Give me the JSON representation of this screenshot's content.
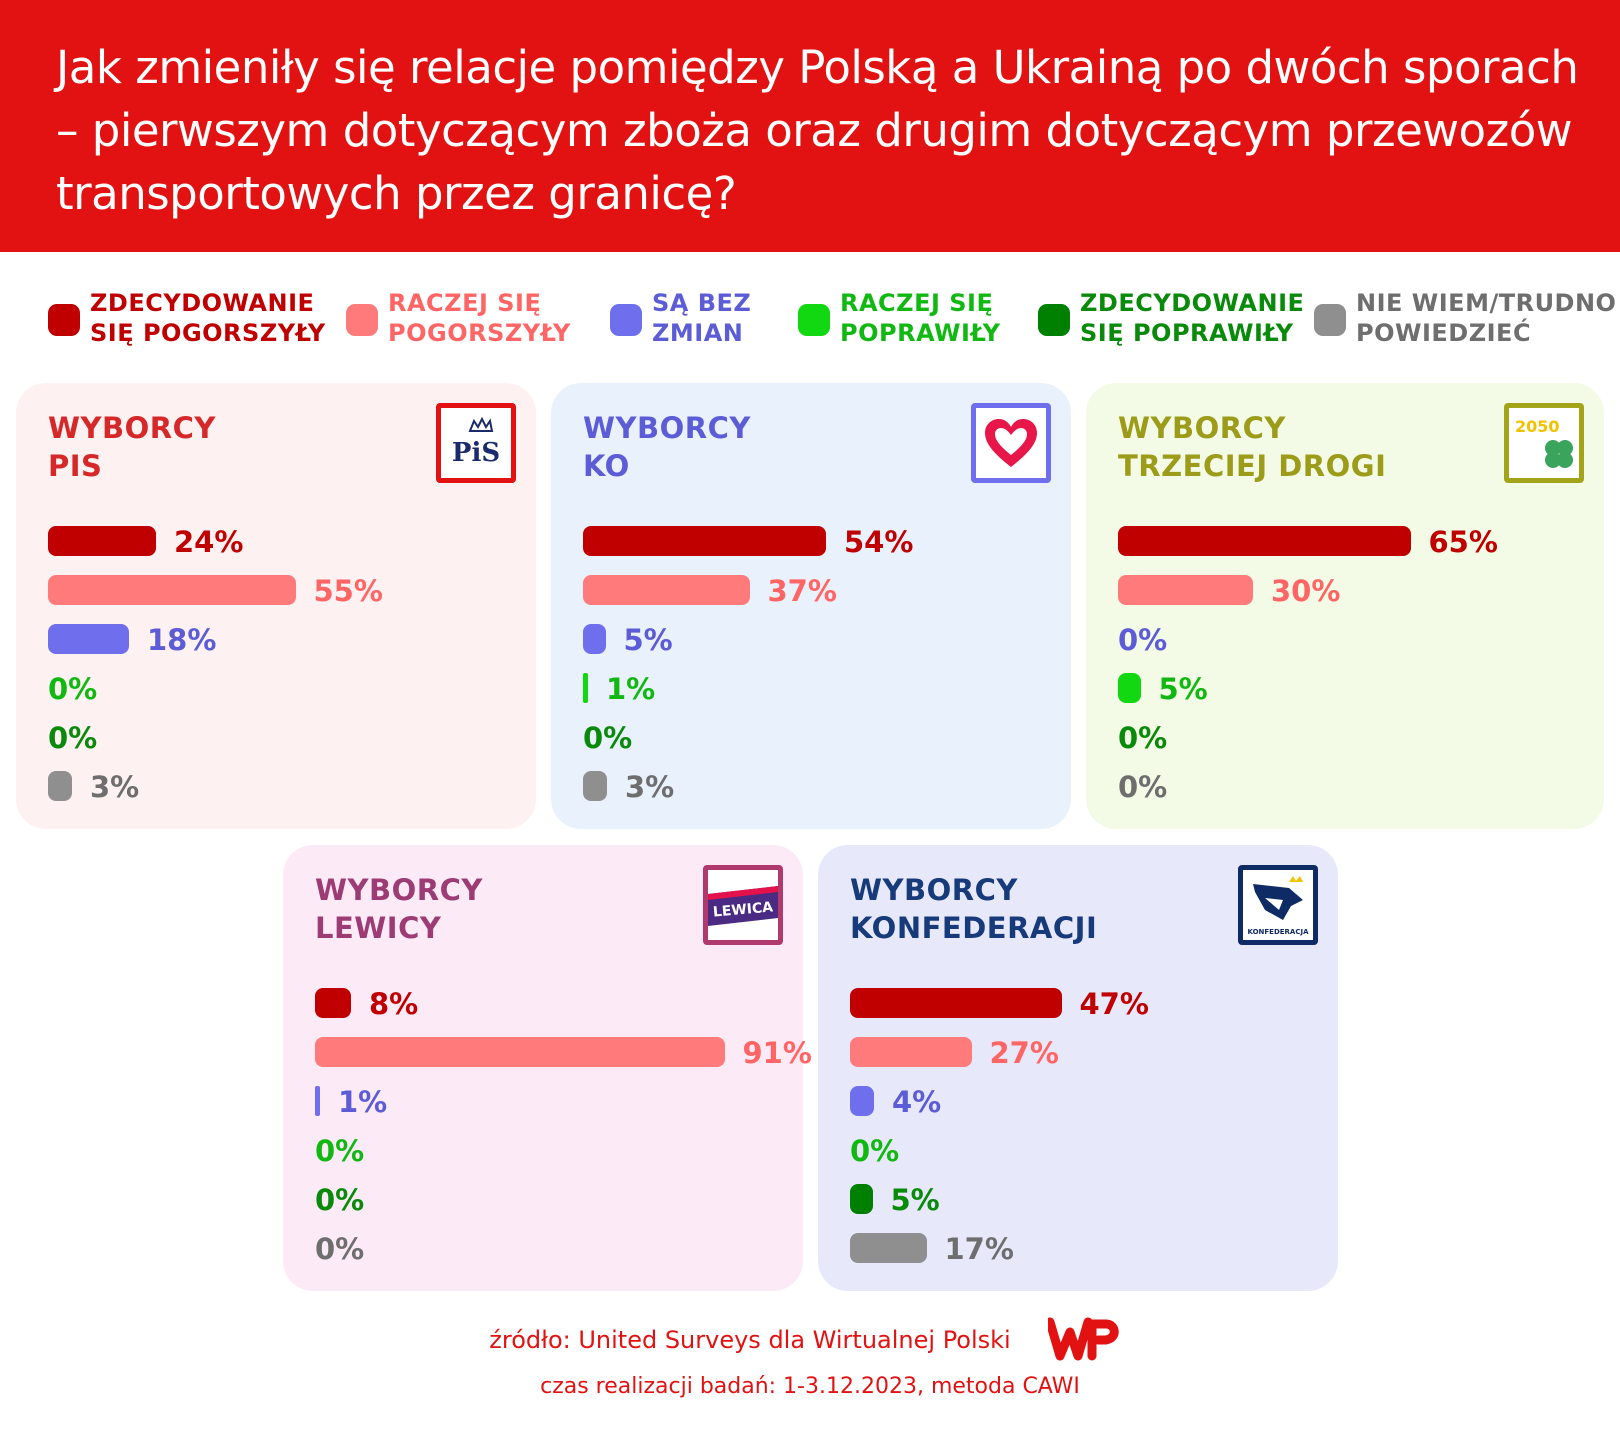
{
  "header": {
    "title": "Jak zmieniły się relacje pomiędzy Polską a Ukrainą po dwóch sporach – pierwszym dotyczącym zboża oraz drugim dotyczącym przewozów transportowych przez granicę?"
  },
  "legend": [
    {
      "label": "ZDECYDOWANIE SIĘ POGORSZYŁY",
      "color": "#c00000"
    },
    {
      "label": "RACZEJ SIĘ POGORSZYŁY",
      "color": "#ff7b7b"
    },
    {
      "label": "SĄ BEZ ZMIAN",
      "color": "#6f6fee"
    },
    {
      "label": "RACZEJ SIĘ POPRAWIŁY",
      "color": "#12d812"
    },
    {
      "label": "ZDECYDOWANIE SIĘ POPRAWIŁY",
      "color": "#008000"
    },
    {
      "label": "NIE WIEM/TRUDNO POWIEDZIEĆ",
      "color": "#8f8f8f"
    }
  ],
  "chart_data": [
    {
      "type": "bar",
      "group": "WYBORCY PIS",
      "title_line1": "WYBORCY",
      "title_line2": "PIS",
      "title_color": "#d62828",
      "logo": "pis-logo",
      "logo_text": "PiS",
      "categories": [
        "ZDECYDOWANIE SIĘ POGORSZYŁY",
        "RACZEJ SIĘ POGORSZYŁY",
        "SĄ BEZ ZMIAN",
        "RACZEJ SIĘ POPRAWIŁY",
        "ZDECYDOWANIE SIĘ POPRAWIŁY",
        "NIE WIEM/TRUDNO POWIEDZIEĆ"
      ],
      "values": [
        24,
        55,
        18,
        0,
        0,
        3
      ],
      "labels": [
        "24%",
        "55%",
        "18%",
        "0%",
        "0%",
        "3%"
      ],
      "unit": "%"
    },
    {
      "type": "bar",
      "group": "WYBORCY KO",
      "title_line1": "WYBORCY",
      "title_line2": "KO",
      "title_color": "#5c5cd6",
      "logo": "ko-heart-logo",
      "categories": [
        "ZDECYDOWANIE SIĘ POGORSZYŁY",
        "RACZEJ SIĘ POGORSZYŁY",
        "SĄ BEZ ZMIAN",
        "RACZEJ SIĘ POPRAWIŁY",
        "ZDECYDOWANIE SIĘ POPRAWIŁY",
        "NIE WIEM/TRUDNO POWIEDZIEĆ"
      ],
      "values": [
        54,
        37,
        5,
        1,
        0,
        3
      ],
      "labels": [
        "54%",
        "37%",
        "5%",
        "1%",
        "0%",
        "3%"
      ],
      "unit": "%"
    },
    {
      "type": "bar",
      "group": "WYBORCY TRZECIEJ DROGI",
      "title_line1": "WYBORCY",
      "title_line2": "TRZECIEJ DROGI",
      "title_color": "#9c9c1a",
      "logo": "trzecia-droga-logo",
      "logo_text": "2050",
      "categories": [
        "ZDECYDOWANIE SIĘ POGORSZYŁY",
        "RACZEJ SIĘ POGORSZYŁY",
        "SĄ BEZ ZMIAN",
        "RACZEJ SIĘ POPRAWIŁY",
        "ZDECYDOWANIE SIĘ POPRAWIŁY",
        "NIE WIEM/TRUDNO POWIEDZIEĆ"
      ],
      "values": [
        65,
        30,
        0,
        5,
        0,
        0
      ],
      "labels": [
        "65%",
        "30%",
        "0%",
        "5%",
        "0%",
        "0%"
      ],
      "unit": "%"
    },
    {
      "type": "bar",
      "group": "WYBORCY LEWICY",
      "title_line1": "WYBORCY",
      "title_line2": "LEWICY",
      "title_color": "#9c3b74",
      "logo": "lewica-logo",
      "logo_text": "LEWICA",
      "categories": [
        "ZDECYDOWANIE SIĘ POGORSZYŁY",
        "RACZEJ SIĘ POGORSZYŁY",
        "SĄ BEZ ZMIAN",
        "RACZEJ SIĘ POPRAWIŁY",
        "ZDECYDOWANIE SIĘ POPRAWIŁY",
        "NIE WIEM/TRUDNO POWIEDZIEĆ"
      ],
      "values": [
        8,
        91,
        1,
        0,
        0,
        0
      ],
      "labels": [
        "8%",
        "91%",
        "1%",
        "0%",
        "0%",
        "0%"
      ],
      "unit": "%"
    },
    {
      "type": "bar",
      "group": "WYBORCY KONFEDERACJI",
      "title_line1": "WYBORCY",
      "title_line2": "KONFEDERACJI",
      "title_color": "#173a7a",
      "logo": "konfederacja-logo",
      "logo_text": "KONFEDERACJA",
      "categories": [
        "ZDECYDOWANIE SIĘ POGORSZYŁY",
        "RACZEJ SIĘ POGORSZYŁY",
        "SĄ BEZ ZMIAN",
        "RACZEJ SIĘ POPRAWIŁY",
        "ZDECYDOWANIE SIĘ POPRAWIŁY",
        "NIE WIEM/TRUDNO POWIEDZIEĆ"
      ],
      "values": [
        47,
        27,
        4,
        0,
        5,
        17
      ],
      "labels": [
        "47%",
        "27%",
        "4%",
        "0%",
        "5%",
        "17%"
      ],
      "unit": "%"
    }
  ],
  "footer": {
    "source": "źródło: United Surveys dla Wirtualnej Polski",
    "time": "czas realizacji badań: 1-3.12.2023, metoda CAWI",
    "logo_text": "WP"
  }
}
